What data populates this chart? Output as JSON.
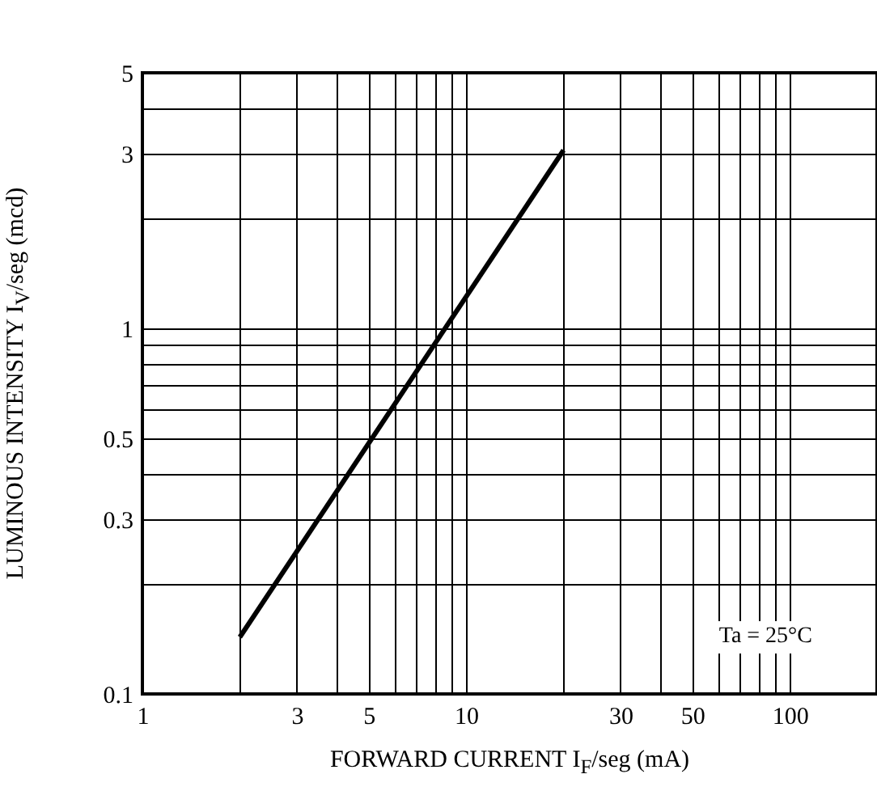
{
  "chart_data": {
    "type": "line",
    "xlabel": "FORWARD CURRENT  I$_{F}$/seg  (mA)",
    "ylabel": "LUMINOUS INTENSITY  I$_{V}$/seg  (mcd)",
    "x": [
      2,
      20
    ],
    "values": [
      0.143,
      3.07
    ],
    "color": "#000000",
    "log": "xy",
    "grid": true,
    "marker": "none",
    "xlim": [
      1,
      186
    ],
    "ylim": [
      0.1,
      5
    ],
    "xticks": [
      1,
      {
        "value": 2,
        "label": null
      },
      3,
      {
        "value": 4,
        "label": null
      },
      5,
      {
        "value": 6,
        "label": null
      },
      {
        "value": 7,
        "label": null
      },
      {
        "value": 8,
        "label": null
      },
      {
        "value": 9,
        "label": null
      },
      10,
      {
        "value": 20,
        "label": null
      },
      30,
      {
        "value": 40,
        "label": null
      },
      50,
      {
        "value": 60,
        "label": null
      },
      {
        "value": 70,
        "label": null
      },
      {
        "value": 80,
        "label": null
      },
      {
        "value": 90,
        "label": null
      },
      100
    ],
    "yticks": [
      0.1,
      {
        "value": 0.2,
        "label": null
      },
      0.3,
      {
        "value": 0.4,
        "label": null
      },
      0.5,
      {
        "value": 0.6,
        "label": null
      },
      {
        "value": 0.7,
        "label": null
      },
      {
        "value": 0.8,
        "label": null
      },
      {
        "value": 0.9,
        "label": null
      },
      1,
      {
        "value": 2,
        "label": null
      },
      3,
      {
        "value": 4,
        "label": null
      },
      5
    ],
    "annotations": [
      "Ta = 25°C"
    ]
  }
}
